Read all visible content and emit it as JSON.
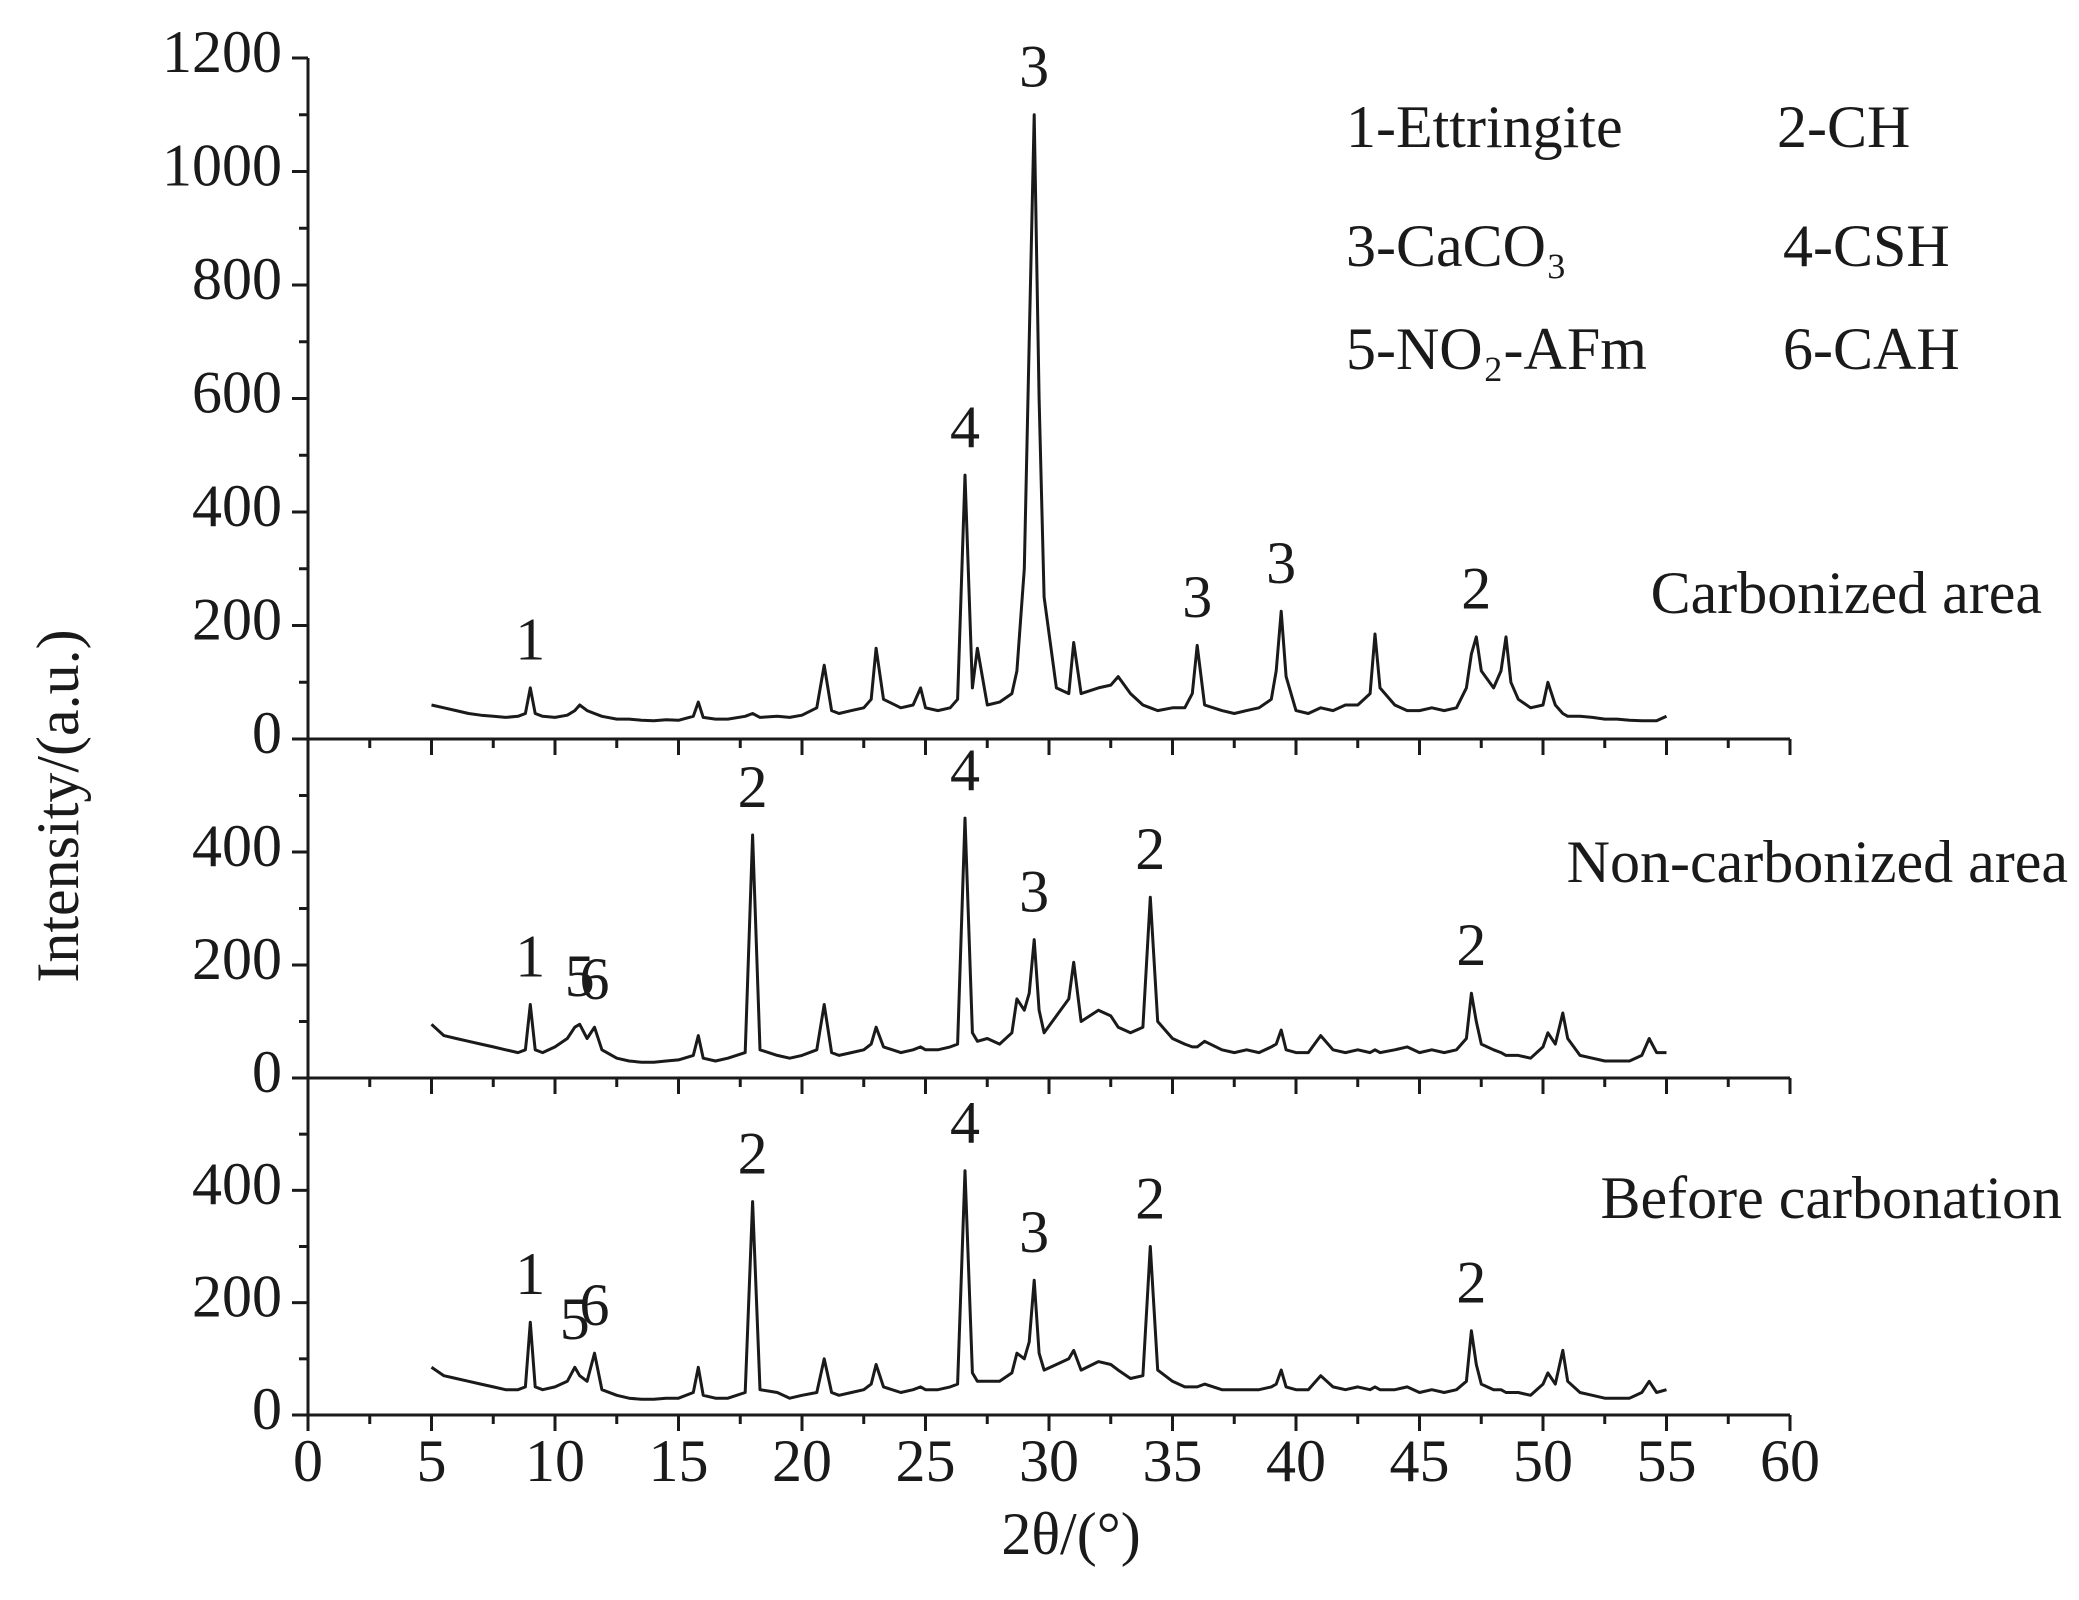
{
  "y_label": "Intensity/(a.u.)",
  "x_label": "2θ/(°)",
  "peak_key": [
    "1-Ettringite",
    "2-CH",
    "3-CaCO₃",
    "4-CSH",
    "5-NO₂-AFm",
    "6-CAH"
  ],
  "chart_data": [
    {
      "type": "line",
      "label": "Carbonized area",
      "color": "#1a1a1a",
      "xlim": [
        0,
        60
      ],
      "xticks": [
        0,
        5,
        10,
        15,
        20,
        25,
        30,
        35,
        40,
        45,
        50,
        55,
        60
      ],
      "ylim": [
        0,
        1200
      ],
      "yticks": [
        0,
        200,
        400,
        600,
        800,
        1000,
        1200
      ],
      "x": [
        5,
        5.5,
        6,
        6.5,
        7,
        7.5,
        8,
        8.5,
        8.8,
        9.0,
        9.2,
        9.5,
        10,
        10.5,
        10.8,
        11.0,
        11.3,
        11.6,
        11.9,
        12.5,
        13,
        13.5,
        14,
        14.5,
        15,
        15.6,
        15.8,
        16.0,
        16.5,
        17,
        17.7,
        18.0,
        18.3,
        19,
        19.5,
        20,
        20.6,
        20.9,
        21.2,
        21.5,
        22,
        22.5,
        22.8,
        23.0,
        23.3,
        24,
        24.5,
        24.8,
        25,
        25.5,
        26,
        26.3,
        26.6,
        26.9,
        27.1,
        27.5,
        28,
        28.5,
        28.7,
        29.0,
        29.2,
        29.4,
        29.6,
        29.8,
        30.3,
        30.8,
        31.0,
        31.3,
        32,
        32.5,
        32.8,
        33.3,
        33.8,
        34.1,
        34.4,
        35,
        35.5,
        35.8,
        36.0,
        36.3,
        37,
        37.5,
        38,
        38.5,
        39,
        39.2,
        39.4,
        39.6,
        40,
        40.5,
        41,
        41.5,
        42,
        42.5,
        43,
        43.2,
        43.4,
        44,
        44.5,
        45,
        45.5,
        46,
        46.5,
        46.9,
        47.1,
        47.3,
        47.5,
        48,
        48.3,
        48.5,
        48.7,
        49,
        49.5,
        50,
        50.2,
        50.5,
        50.8,
        51.0,
        51.5,
        52,
        52.5,
        53,
        53.5,
        54,
        54.3,
        54.6,
        55
      ],
      "values": [
        60,
        55,
        50,
        45,
        42,
        40,
        38,
        40,
        45,
        90,
        45,
        40,
        38,
        42,
        50,
        60,
        50,
        45,
        40,
        35,
        35,
        33,
        32,
        34,
        33,
        40,
        65,
        38,
        35,
        35,
        40,
        45,
        38,
        40,
        38,
        42,
        55,
        130,
        50,
        45,
        50,
        55,
        70,
        160,
        70,
        55,
        60,
        90,
        55,
        50,
        55,
        70,
        465,
        90,
        160,
        60,
        65,
        80,
        120,
        300,
        700,
        1100,
        600,
        250,
        90,
        80,
        170,
        80,
        90,
        95,
        110,
        80,
        60,
        55,
        50,
        55,
        55,
        80,
        165,
        60,
        50,
        45,
        50,
        55,
        70,
        120,
        225,
        110,
        50,
        45,
        55,
        50,
        60,
        60,
        80,
        185,
        90,
        60,
        50,
        50,
        55,
        50,
        55,
        90,
        150,
        180,
        120,
        90,
        120,
        180,
        100,
        70,
        55,
        60,
        100,
        60,
        45,
        40,
        40,
        38,
        35,
        35,
        33,
        32,
        32,
        32,
        40
      ],
      "annotations": [
        {
          "text": "1",
          "x": 9.0
        },
        {
          "text": "4",
          "x": 26.6
        },
        {
          "text": "3",
          "x": 29.4
        },
        {
          "text": "3",
          "x": 36.0
        },
        {
          "text": "3",
          "x": 39.4
        },
        {
          "text": "2",
          "x": 47.3
        }
      ]
    },
    {
      "type": "line",
      "label": "Non-carbonized area",
      "color": "#1a1a1a",
      "xlim": [
        0,
        60
      ],
      "xticks": [
        0,
        5,
        10,
        15,
        20,
        25,
        30,
        35,
        40,
        45,
        50,
        55,
        60
      ],
      "ylim": [
        0,
        600
      ],
      "yticks": [
        0,
        200,
        400
      ],
      "x": [
        5,
        5.5,
        6,
        6.5,
        7,
        7.5,
        8,
        8.5,
        8.8,
        9.0,
        9.2,
        9.5,
        10,
        10.5,
        10.8,
        11.0,
        11.3,
        11.6,
        11.9,
        12.5,
        13,
        13.5,
        14,
        14.5,
        15,
        15.6,
        15.8,
        16.0,
        16.5,
        17,
        17.7,
        18.0,
        18.3,
        19,
        19.5,
        20,
        20.6,
        20.9,
        21.2,
        21.5,
        22,
        22.5,
        22.8,
        23.0,
        23.3,
        24,
        24.5,
        24.8,
        25,
        25.5,
        26,
        26.3,
        26.6,
        26.9,
        27.1,
        27.5,
        28,
        28.5,
        28.7,
        29.0,
        29.2,
        29.4,
        29.6,
        29.8,
        30.3,
        30.8,
        31.0,
        31.3,
        32,
        32.5,
        32.8,
        33.3,
        33.8,
        34.1,
        34.4,
        35,
        35.5,
        35.8,
        36.0,
        36.3,
        37,
        37.5,
        38,
        38.5,
        39,
        39.2,
        39.4,
        39.6,
        40,
        40.5,
        41,
        41.5,
        42,
        42.5,
        43,
        43.2,
        43.4,
        44,
        44.5,
        45,
        45.5,
        46,
        46.5,
        46.9,
        47.1,
        47.3,
        47.5,
        48,
        48.3,
        48.5,
        48.7,
        49,
        49.5,
        50,
        50.2,
        50.5,
        50.8,
        51.0,
        51.5,
        52,
        52.5,
        53,
        53.5,
        54,
        54.3,
        54.6,
        55
      ],
      "values": [
        95,
        75,
        70,
        65,
        60,
        55,
        50,
        45,
        50,
        130,
        50,
        45,
        55,
        70,
        90,
        95,
        70,
        90,
        50,
        35,
        30,
        28,
        28,
        30,
        32,
        40,
        75,
        35,
        30,
        35,
        45,
        430,
        50,
        40,
        35,
        40,
        50,
        130,
        45,
        40,
        45,
        50,
        60,
        90,
        55,
        45,
        50,
        55,
        50,
        50,
        55,
        60,
        460,
        80,
        65,
        70,
        60,
        80,
        140,
        120,
        150,
        245,
        120,
        80,
        110,
        140,
        205,
        100,
        120,
        110,
        90,
        80,
        90,
        320,
        100,
        70,
        60,
        55,
        55,
        65,
        50,
        45,
        50,
        45,
        55,
        60,
        85,
        50,
        45,
        45,
        75,
        50,
        45,
        50,
        45,
        50,
        45,
        50,
        55,
        45,
        50,
        45,
        50,
        70,
        150,
        100,
        60,
        50,
        45,
        40,
        40,
        40,
        35,
        55,
        80,
        60,
        115,
        70,
        40,
        35,
        30,
        30,
        30,
        40,
        70,
        45,
        45
      ],
      "annotations": [
        {
          "text": "1",
          "x": 9.0
        },
        {
          "text": "5",
          "x": 11.0
        },
        {
          "text": "6",
          "x": 11.6
        },
        {
          "text": "2",
          "x": 18.0
        },
        {
          "text": "4",
          "x": 26.6
        },
        {
          "text": "3",
          "x": 29.4
        },
        {
          "text": "2",
          "x": 34.1
        },
        {
          "text": "2",
          "x": 47.1
        }
      ]
    },
    {
      "type": "line",
      "label": "Before carbonation",
      "color": "#1a1a1a",
      "xlim": [
        0,
        60
      ],
      "xticks": [
        0,
        5,
        10,
        15,
        20,
        25,
        30,
        35,
        40,
        45,
        50,
        55,
        60
      ],
      "ylim": [
        0,
        600
      ],
      "yticks": [
        0,
        200,
        400
      ],
      "x": [
        5,
        5.5,
        6,
        6.5,
        7,
        7.5,
        8,
        8.5,
        8.8,
        9.0,
        9.2,
        9.5,
        10,
        10.5,
        10.8,
        11.0,
        11.3,
        11.6,
        11.9,
        12.5,
        13,
        13.5,
        14,
        14.5,
        15,
        15.6,
        15.8,
        16.0,
        16.5,
        17,
        17.7,
        18.0,
        18.3,
        19,
        19.5,
        20,
        20.6,
        20.9,
        21.2,
        21.5,
        22,
        22.5,
        22.8,
        23.0,
        23.3,
        24,
        24.5,
        24.8,
        25,
        25.5,
        26,
        26.3,
        26.6,
        26.9,
        27.1,
        27.5,
        28,
        28.5,
        28.7,
        29.0,
        29.2,
        29.4,
        29.6,
        29.8,
        30.3,
        30.8,
        31.0,
        31.3,
        32,
        32.5,
        32.8,
        33.3,
        33.8,
        34.1,
        34.4,
        35,
        35.5,
        35.8,
        36.0,
        36.3,
        37,
        37.5,
        38,
        38.5,
        39,
        39.2,
        39.4,
        39.6,
        40,
        40.5,
        41,
        41.5,
        42,
        42.5,
        43,
        43.2,
        43.4,
        44,
        44.5,
        45,
        45.5,
        46,
        46.5,
        46.9,
        47.1,
        47.3,
        47.5,
        48,
        48.3,
        48.5,
        48.7,
        49,
        49.5,
        50,
        50.2,
        50.5,
        50.8,
        51.0,
        51.5,
        52,
        52.5,
        53,
        53.5,
        54,
        54.3,
        54.6,
        55
      ],
      "values": [
        85,
        70,
        65,
        60,
        55,
        50,
        45,
        45,
        50,
        165,
        50,
        45,
        50,
        60,
        85,
        70,
        60,
        110,
        45,
        35,
        30,
        28,
        28,
        30,
        30,
        40,
        85,
        35,
        30,
        30,
        40,
        380,
        45,
        40,
        30,
        35,
        40,
        100,
        40,
        35,
        40,
        45,
        55,
        90,
        50,
        40,
        45,
        50,
        45,
        45,
        50,
        55,
        435,
        75,
        60,
        60,
        60,
        75,
        110,
        100,
        130,
        240,
        110,
        80,
        90,
        100,
        115,
        80,
        95,
        90,
        80,
        65,
        70,
        300,
        80,
        60,
        50,
        50,
        50,
        55,
        45,
        45,
        45,
        45,
        50,
        55,
        80,
        50,
        45,
        45,
        70,
        50,
        45,
        50,
        45,
        50,
        45,
        45,
        50,
        40,
        45,
        40,
        45,
        60,
        150,
        90,
        55,
        45,
        45,
        40,
        40,
        40,
        35,
        55,
        75,
        55,
        115,
        60,
        40,
        35,
        30,
        30,
        30,
        40,
        60,
        40,
        45
      ],
      "annotations": [
        {
          "text": "1",
          "x": 9.0
        },
        {
          "text": "5",
          "x": 10.8
        },
        {
          "text": "6",
          "x": 11.6
        },
        {
          "text": "2",
          "x": 18.0
        },
        {
          "text": "4",
          "x": 26.6
        },
        {
          "text": "3",
          "x": 29.4
        },
        {
          "text": "2",
          "x": 34.1
        },
        {
          "text": "2",
          "x": 47.1
        }
      ]
    }
  ]
}
